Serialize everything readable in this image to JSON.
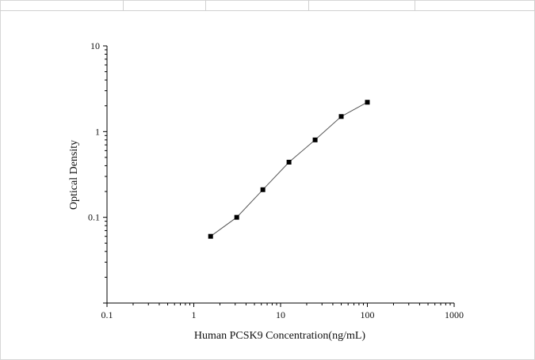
{
  "chart_data": {
    "type": "scatter",
    "title": "",
    "xlabel": "Human PCSK9 Concentration(ng/mL)",
    "ylabel": "Optical Density",
    "xscale": "log",
    "yscale": "log",
    "xlim": [
      0.1,
      1000
    ],
    "ylim": [
      0.01,
      10
    ],
    "x_ticks": [
      "0.1",
      "1",
      "10",
      "100",
      "1000"
    ],
    "y_ticks": [
      "0.1",
      "1",
      "10"
    ],
    "grid": false,
    "legend": "none",
    "series": [
      {
        "x": [
          1.5625,
          3.125,
          6.25,
          12.5,
          25,
          50,
          100
        ],
        "y": [
          0.06,
          0.1,
          0.21,
          0.44,
          0.8,
          1.5,
          2.2
        ]
      }
    ],
    "colors": {
      "marker": "#000000",
      "line": "#555555",
      "axis": "#000000"
    }
  }
}
